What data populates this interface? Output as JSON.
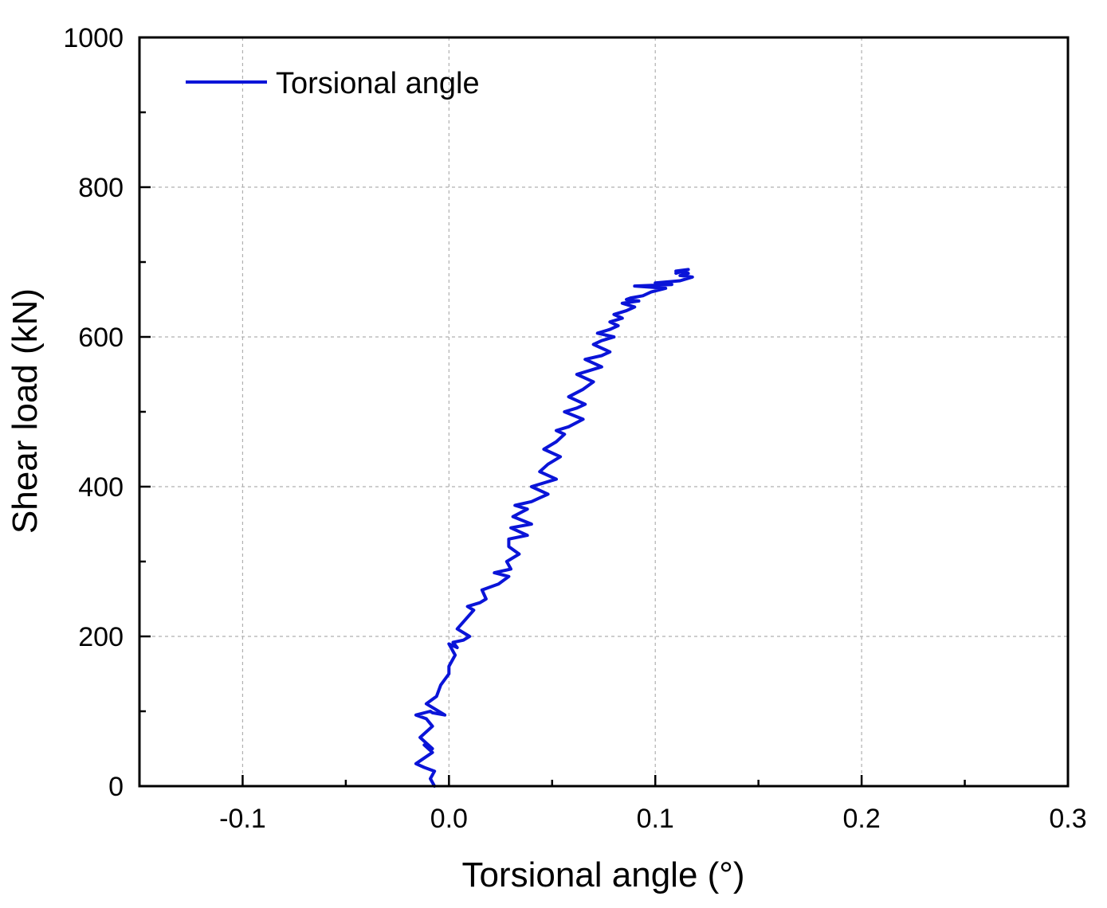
{
  "chart_data": {
    "type": "line",
    "title": "",
    "xlabel": "Torsional angle (°)",
    "ylabel": "Shear load (kN)",
    "xlim": [
      -0.15,
      0.3
    ],
    "ylim": [
      0,
      1000
    ],
    "x_ticks": [
      "-0.1",
      "0.0",
      "0.1",
      "0.2",
      "0.3"
    ],
    "x_tick_values": [
      -0.1,
      0.0,
      0.1,
      0.2,
      0.3
    ],
    "y_ticks": [
      "0",
      "200",
      "400",
      "600",
      "800",
      "1000"
    ],
    "y_tick_values": [
      0,
      200,
      400,
      600,
      800,
      1000
    ],
    "grid": true,
    "legend_position": "top-left",
    "series": [
      {
        "name": "Torsional angle",
        "color": "#0a14d8",
        "x": [
          -0.007,
          -0.009,
          -0.007,
          -0.012,
          -0.016,
          -0.008,
          -0.012,
          -0.008,
          -0.014,
          -0.008,
          -0.011,
          -0.016,
          -0.009,
          -0.008,
          -0.002,
          -0.011,
          -0.006,
          -0.004,
          0.0,
          0.0,
          0.003,
          0.0,
          0.004,
          0.002,
          0.007,
          0.01,
          0.004,
          0.012,
          0.009,
          0.015,
          0.018,
          0.016,
          0.022,
          0.024,
          0.029,
          0.022,
          0.03,
          0.028,
          0.034,
          0.029,
          0.029,
          0.038,
          0.03,
          0.04,
          0.031,
          0.038,
          0.032,
          0.04,
          0.044,
          0.048,
          0.04,
          0.052,
          0.044,
          0.048,
          0.054,
          0.046,
          0.052,
          0.056,
          0.052,
          0.058,
          0.065,
          0.056,
          0.062,
          0.066,
          0.058,
          0.065,
          0.07,
          0.062,
          0.068,
          0.074,
          0.066,
          0.074,
          0.078,
          0.07,
          0.074,
          0.08,
          0.072,
          0.078,
          0.082,
          0.078,
          0.084,
          0.08,
          0.086,
          0.09,
          0.084,
          0.092,
          0.086,
          0.088,
          0.094,
          0.098,
          0.105,
          0.09,
          0.108,
          0.1,
          0.112,
          0.118,
          0.112,
          0.116,
          0.11,
          0.116,
          0.11
        ],
        "y": [
          0,
          10,
          20,
          25,
          30,
          45,
          55,
          50,
          65,
          80,
          90,
          95,
          100,
          98,
          95,
          110,
          120,
          135,
          150,
          160,
          175,
          190,
          185,
          192,
          195,
          200,
          210,
          235,
          240,
          245,
          250,
          262,
          268,
          270,
          280,
          285,
          290,
          300,
          310,
          320,
          330,
          335,
          345,
          350,
          360,
          370,
          375,
          380,
          385,
          390,
          400,
          410,
          420,
          430,
          440,
          450,
          460,
          470,
          475,
          480,
          490,
          500,
          505,
          510,
          520,
          530,
          540,
          550,
          555,
          560,
          570,
          575,
          580,
          590,
          595,
          600,
          605,
          610,
          615,
          620,
          625,
          630,
          635,
          640,
          645,
          648,
          650,
          652,
          655,
          660,
          665,
          668,
          670,
          672,
          675,
          680,
          682,
          685,
          688,
          690,
          685
        ]
      }
    ]
  }
}
